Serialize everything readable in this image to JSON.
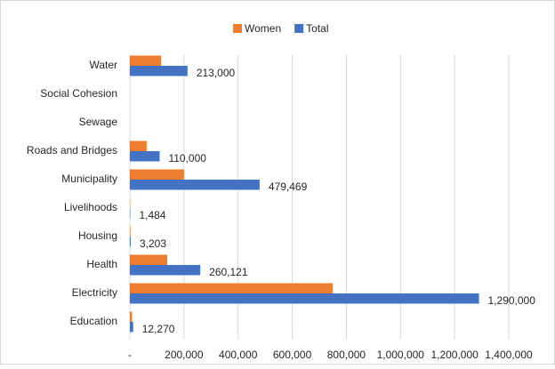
{
  "chart_data": {
    "type": "hbar",
    "categories": [
      "Water",
      "Social Cohesion",
      "Sewage",
      "Roads and Bridges",
      "Municipality",
      "Livelihoods",
      "Housing",
      "Health",
      "Electricity",
      "Education"
    ],
    "series": [
      {
        "name": "Women",
        "color": "#ed7d31",
        "values": [
          115000,
          null,
          null,
          62000,
          200000,
          1000,
          2000,
          138000,
          750000,
          8000
        ]
      },
      {
        "name": "Total",
        "color": "#4472c4",
        "values": [
          213000,
          null,
          null,
          110000,
          479469,
          1484,
          3203,
          260121,
          1290000,
          12270
        ],
        "value_labels": [
          "213,000",
          null,
          null,
          "110,000",
          "479,469",
          "1,484",
          "3,203",
          "260,121",
          "1,290,000",
          "12,270"
        ]
      }
    ],
    "xlim": [
      0,
      1400000
    ],
    "xticks": [
      {
        "value": 0,
        "label": "-"
      },
      {
        "value": 200000,
        "label": "200,000"
      },
      {
        "value": 400000,
        "label": "400,000"
      },
      {
        "value": 600000,
        "label": "600,000"
      },
      {
        "value": 800000,
        "label": "800,000"
      },
      {
        "value": 1000000,
        "label": "1,000,000"
      },
      {
        "value": 1200000,
        "label": "1,200,000"
      },
      {
        "value": 1400000,
        "label": "1,400,000"
      }
    ],
    "grid": true,
    "legend": "top"
  }
}
